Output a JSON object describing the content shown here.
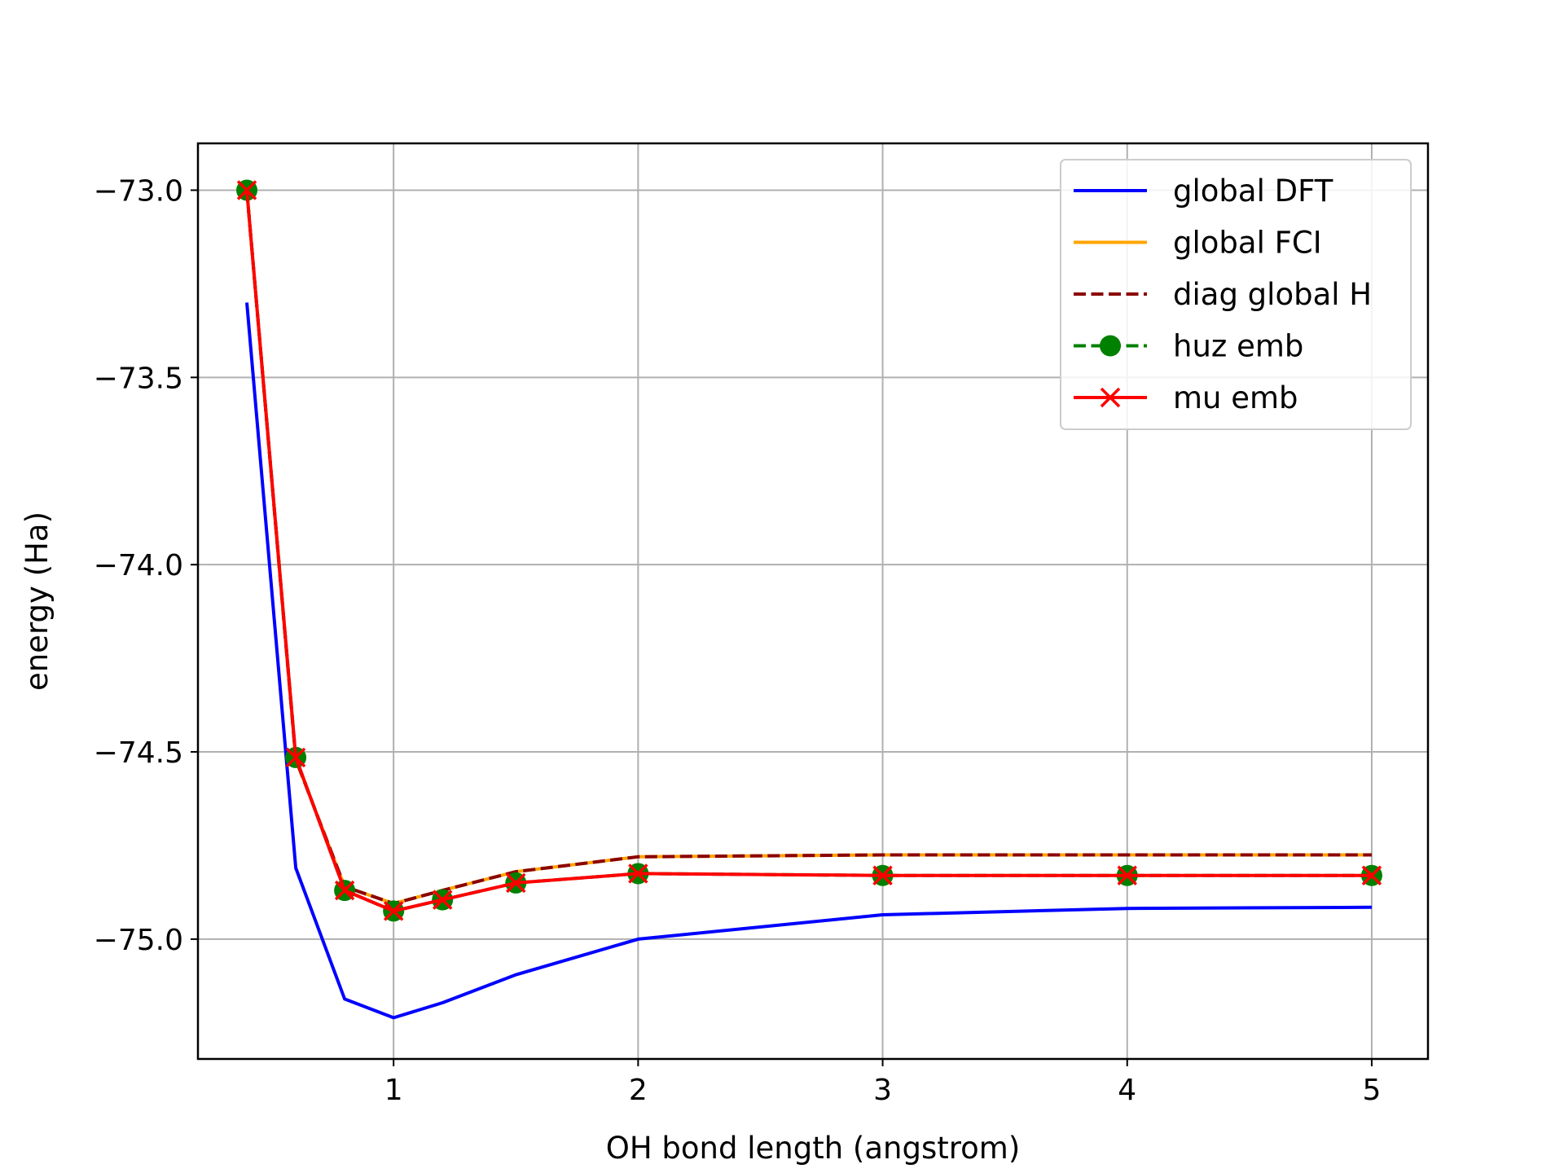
{
  "chart_data": {
    "type": "line",
    "title": "",
    "xlabel": "OH bond length (angstrom)",
    "ylabel": "energy (Ha)",
    "xlim": [
      0.2,
      5.23
    ],
    "ylim": [
      -75.32,
      -72.875
    ],
    "xticks": [
      1,
      2,
      3,
      4,
      5
    ],
    "xtick_labels": [
      "1",
      "2",
      "3",
      "4",
      "5"
    ],
    "yticks": [
      -75.0,
      -74.5,
      -74.0,
      -73.5,
      -73.0
    ],
    "ytick_labels": [
      "−75.0",
      "−74.5",
      "−74.0",
      "−73.5",
      "−73.0"
    ],
    "grid": true,
    "legend_position": "top-right",
    "x": [
      0.4,
      0.6,
      0.8,
      1.0,
      1.2,
      1.5,
      2.0,
      3.0,
      4.0,
      5.0
    ],
    "series": [
      {
        "name": "global DFT",
        "color": "#0000ff",
        "line_style": "solid",
        "marker": "none",
        "values": [
          -73.3,
          -74.81,
          -75.16,
          -75.21,
          -75.17,
          -75.095,
          -75.0,
          -74.935,
          -74.918,
          -74.915
        ]
      },
      {
        "name": "global FCI",
        "color": "#ffa500",
        "line_style": "solid",
        "marker": "none",
        "values": [
          -73.0,
          -74.52,
          -74.86,
          -74.905,
          -74.87,
          -74.82,
          -74.78,
          -74.775,
          -74.775,
          -74.775
        ]
      },
      {
        "name": "diag global H",
        "color": "#8b0000",
        "line_style": "dashed",
        "marker": "none",
        "values": [
          -73.0,
          -74.52,
          -74.86,
          -74.905,
          -74.87,
          -74.82,
          -74.78,
          -74.775,
          -74.775,
          -74.775
        ]
      },
      {
        "name": "huz emb",
        "color": "#008000",
        "line_style": "dashed",
        "marker": "circle",
        "values": [
          -73.0,
          -74.515,
          -74.87,
          -74.925,
          -74.895,
          -74.85,
          -74.825,
          -74.83,
          -74.83,
          -74.83
        ]
      },
      {
        "name": "mu emb",
        "color": "#ff0000",
        "line_style": "solid",
        "marker": "x",
        "values": [
          -73.0,
          -74.515,
          -74.87,
          -74.925,
          -74.895,
          -74.85,
          -74.825,
          -74.83,
          -74.83,
          -74.83
        ]
      }
    ]
  }
}
